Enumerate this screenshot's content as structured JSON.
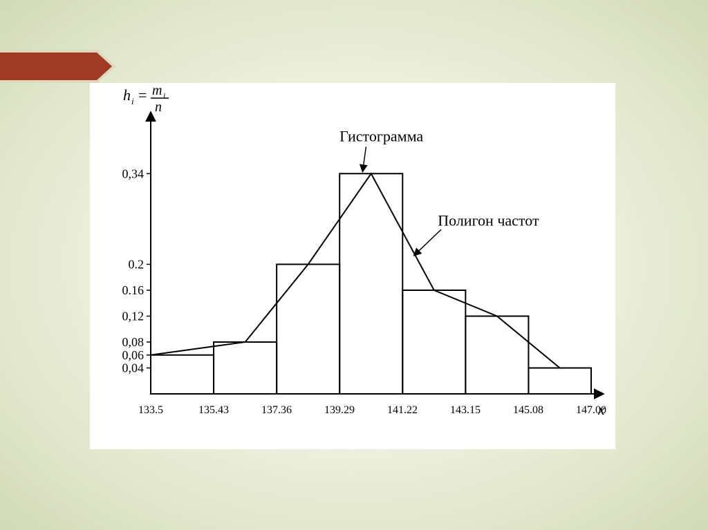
{
  "background": {
    "gradient_center": "#fbfcf2",
    "gradient_outer": "#d2dab6"
  },
  "ribbon": {
    "fill": "#9f3a24",
    "border": "#e0d6bb"
  },
  "chart": {
    "type": "histogram+polygon",
    "card_bg": "#ffffff",
    "stroke_color": "#000000",
    "stroke_width": 2,
    "axis": {
      "y_label_formula": "hᵢ = mᵢ / n",
      "x_label": "x",
      "x_ticks": [
        "133.5",
        "135.43",
        "137.36",
        "139.29",
        "141.22",
        "143.15",
        "145.08",
        "147.00"
      ],
      "y_ticks": [
        "0,04",
        "0,06",
        "0,08",
        "0,12",
        "0.16",
        "0.2",
        "0,34"
      ],
      "font_family": "Times New Roman",
      "tick_fontsize": 18,
      "label_fontsize": 22
    },
    "bars": [
      {
        "x0": 133.5,
        "x1": 135.43,
        "h": 0.06
      },
      {
        "x0": 135.43,
        "x1": 137.36,
        "h": 0.08
      },
      {
        "x0": 137.36,
        "x1": 139.29,
        "h": 0.2
      },
      {
        "x0": 139.29,
        "x1": 141.22,
        "h": 0.34
      },
      {
        "x0": 141.22,
        "x1": 143.15,
        "h": 0.16
      },
      {
        "x0": 143.15,
        "x1": 145.08,
        "h": 0.12
      },
      {
        "x0": 145.08,
        "x1": 147.0,
        "h": 0.04
      }
    ],
    "polygon_points": [
      {
        "x": 133.5,
        "y": 0.06
      },
      {
        "x": 136.395,
        "y": 0.08
      },
      {
        "x": 138.325,
        "y": 0.2
      },
      {
        "x": 140.255,
        "y": 0.34
      },
      {
        "x": 142.185,
        "y": 0.16
      },
      {
        "x": 144.115,
        "y": 0.12
      },
      {
        "x": 146.04,
        "y": 0.04
      },
      {
        "x": 147.0,
        "y": 0.04
      }
    ],
    "xlim": [
      133.5,
      147.0
    ],
    "ylim": [
      0,
      0.4
    ],
    "y_ticks_numeric": [
      0.04,
      0.06,
      0.08,
      0.12,
      0.16,
      0.2,
      0.34
    ],
    "annotations": {
      "histogram_label": "Гистограмма",
      "polygon_label": "Полигон частот"
    },
    "font_color": "#000000"
  }
}
